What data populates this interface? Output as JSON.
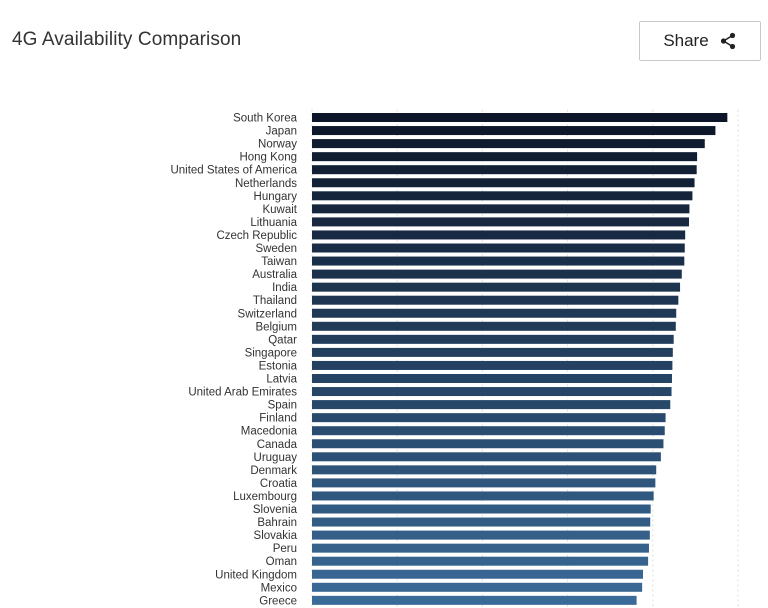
{
  "header": {
    "title": "4G Availability Comparison",
    "share_label": "Share"
  },
  "icons": {
    "share": "share-icon"
  },
  "chart_data": {
    "type": "bar",
    "orientation": "horizontal",
    "title": "4G Availability Comparison",
    "xlabel": "",
    "ylabel": "",
    "xlim": [
      0,
      100
    ],
    "grid": true,
    "gradient_colors": [
      "#0d1628",
      "#3a6a97"
    ],
    "series": [
      {
        "categories": [
          "South Korea",
          "Japan",
          "Norway",
          "Hong Kong",
          "United States of America",
          "Netherlands",
          "Hungary",
          "Kuwait",
          "Lithuania",
          "Czech Republic",
          "Sweden",
          "Taiwan",
          "Australia",
          "India",
          "Thailand",
          "Switzerland",
          "Belgium",
          "Qatar",
          "Singapore",
          "Estonia",
          "Latvia",
          "United Arab Emirates",
          "Spain",
          "Finland",
          "Macedonia",
          "Canada",
          "Uruguay",
          "Denmark",
          "Croatia",
          "Luxembourg",
          "Slovenia",
          "Bahrain",
          "Slovakia",
          "Peru",
          "Oman",
          "United Kingdom",
          "Mexico",
          "Greece"
        ],
        "values": [
          97.5,
          94.7,
          92.2,
          90.4,
          90.3,
          89.8,
          89.3,
          88.6,
          88.5,
          87.6,
          87.5,
          87.4,
          86.8,
          86.4,
          86.0,
          85.5,
          85.4,
          84.9,
          84.7,
          84.6,
          84.5,
          84.4,
          84.1,
          83.0,
          82.8,
          82.5,
          81.9,
          80.8,
          80.6,
          80.2,
          79.5,
          79.4,
          79.3,
          79.1,
          78.9,
          77.7,
          77.5,
          76.2
        ]
      }
    ]
  }
}
